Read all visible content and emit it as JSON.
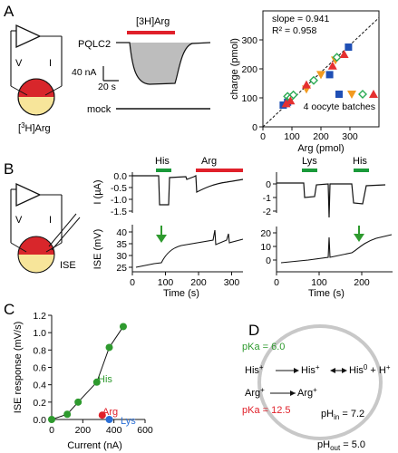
{
  "panels": {
    "A": {
      "letter": "A",
      "schematic": {
        "v": "V",
        "i": "I",
        "label_prefix": "[",
        "label_sup": "3",
        "label_suffix": "H]Arg"
      },
      "trace": {
        "bar_label": "[3H]Arg",
        "top_label": "PQLC2",
        "scale_current": "40 nA",
        "scale_time": "20 s",
        "bottom_label": "mock"
      },
      "colors": {
        "bar": "#e0202a",
        "fill": "#bdbdbd"
      }
    },
    "A_scatter": {
      "chart_data": {
        "type": "scatter",
        "xlabel": "Arg (pmol)",
        "ylabel": "charge (pmol)",
        "xlim": [
          0,
          400
        ],
        "ylim": [
          0,
          400
        ],
        "xticks": [
          0,
          100,
          200,
          300
        ],
        "yticks": [
          0,
          100,
          200,
          300
        ],
        "annotations": [
          "slope = 0.941",
          "R² = 0.958"
        ],
        "legend_text": "4 oocyte batches",
        "series": [
          {
            "name": "",
            "marker": "square",
            "color": "#1f4fb5",
            "points": [
              [
                70,
                75
              ],
              [
                85,
                85
              ],
              [
                230,
                180
              ],
              [
                295,
                275
              ]
            ]
          },
          {
            "name": "",
            "marker": "triangle-down",
            "color": "#f29a1f",
            "points": [
              [
                90,
                100
              ],
              [
                150,
                130
              ],
              [
                200,
                180
              ],
              [
                250,
                230
              ]
            ]
          },
          {
            "name": "",
            "marker": "diamond-open",
            "color": "#2bab55",
            "points": [
              [
                85,
                105
              ],
              [
                95,
                100
              ],
              [
                105,
                110
              ],
              [
                175,
                160
              ],
              [
                255,
                240
              ]
            ]
          },
          {
            "name": "",
            "marker": "triangle",
            "color": "#e53030",
            "points": [
              [
                80,
                80
              ],
              [
                95,
                90
              ],
              [
                150,
                145
              ],
              [
                240,
                210
              ],
              [
                280,
                250
              ]
            ]
          }
        ],
        "fit_line": {
          "slope": 0.941
        }
      }
    },
    "B": {
      "letter": "B",
      "schematic": {
        "v": "V",
        "i": "I",
        "ise": "ISE"
      },
      "left": {
        "bars": [
          {
            "label": "His",
            "color": "#1a9a3a"
          },
          {
            "label": "Arg",
            "color": "#e0202a"
          }
        ],
        "current_ylabel": "I (µA)",
        "current_ticks": [
          "0.0",
          "-0.5",
          "-1.0",
          "-1.5"
        ],
        "ise_ylabel": "ISE (mV)",
        "ise_ticks": [
          "40",
          "35",
          "30",
          "25"
        ],
        "xlabel": "Time (s)",
        "xticks": [
          "0",
          "100",
          "200",
          "300"
        ]
      },
      "right": {
        "bars": [
          {
            "label": "Lys",
            "color": "#1a9a3a"
          },
          {
            "label": "His",
            "color": "#1a9a3a"
          }
        ],
        "current_ticks": [
          "0",
          "-1",
          "-2"
        ],
        "ise_ticks": [
          "20",
          "10",
          "0"
        ],
        "xlabel": "Time (s)",
        "xticks": [
          "0",
          "100",
          "200"
        ]
      },
      "arrow_color": "#2e9a2e"
    },
    "C": {
      "letter": "C",
      "chart_data": {
        "type": "scatter",
        "xlabel": "Current (nA)",
        "ylabel": "ISE response (mV/s)",
        "xlim": [
          0,
          600
        ],
        "ylim": [
          0,
          1.2
        ],
        "xticks": [
          "0",
          "200",
          "400",
          "600"
        ],
        "yticks": [
          "0.0",
          "0.2",
          "0.4",
          "0.6",
          "0.8",
          "1.0",
          "1.2"
        ],
        "series": [
          {
            "name": "His",
            "color": "#2e9a2e",
            "x": [
              0,
              100,
              170,
              290,
              370,
              460
            ],
            "y": [
              0,
              0.06,
              0.2,
              0.43,
              0.83,
              1.07
            ]
          },
          {
            "name": "Arg",
            "color": "#e0202a",
            "x": [
              325
            ],
            "y": [
              0.05
            ]
          },
          {
            "name": "Lys",
            "color": "#2a6fd6",
            "x": [
              370
            ],
            "y": [
              0.0
            ]
          }
        ]
      }
    },
    "D": {
      "letter": "D",
      "pka_his": "pKa = 6.0",
      "pka_arg": "pKa = 12.5",
      "his_plus": "His",
      "his_in": "His",
      "his_zero": "His",
      "h_plus": "H",
      "arg_plus": "Arg",
      "arg_in": "Arg",
      "ph_in": "pH",
      "ph_in_sub": "in",
      "ph_in_val": " = 7.2",
      "ph_out": "pH",
      "ph_out_sub": "out",
      "ph_out_val": " = 5.0",
      "colors": {
        "pka_his": "#2e9a2e",
        "pka_arg": "#e0202a",
        "circle": "#c8c8c8"
      }
    }
  }
}
